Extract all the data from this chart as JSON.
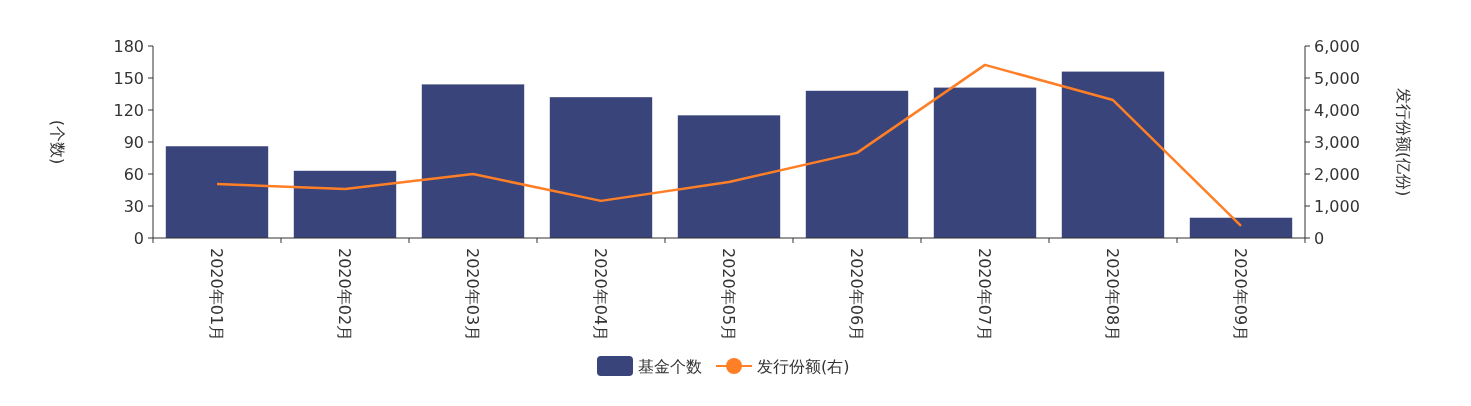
{
  "chart_data": {
    "type": "bar",
    "ylabel": "(个数)",
    "y2label": "发行份额(亿份)",
    "categories": [
      "2020年01月",
      "2020年02月",
      "2020年03月",
      "2020年04月",
      "2020年05月",
      "2020年06月",
      "2020年07月",
      "2020年08月",
      "2020年09月"
    ],
    "series": [
      {
        "name": "基金个数",
        "color": "#38447a",
        "values": [
          86,
          63,
          144,
          132,
          115,
          138,
          141,
          156,
          19
        ]
      },
      {
        "name": "发行份额(右)",
        "type": "line",
        "axis": "y2",
        "color": "#ff7f27",
        "values": [
          1690,
          1530,
          2000,
          1160,
          1750,
          2660,
          5410,
          4310,
          380
        ]
      }
    ],
    "ylim": [
      0,
      180
    ],
    "yticks": [
      0,
      30,
      60,
      90,
      120,
      150,
      180
    ],
    "y2lim": [
      0,
      6000
    ],
    "y2ticks": [
      {
        "value": 0,
        "label": "0"
      },
      {
        "value": 1000,
        "label": "1,000"
      },
      {
        "value": 2000,
        "label": "2,000"
      },
      {
        "value": 3000,
        "label": "3,000"
      },
      {
        "value": 4000,
        "label": "4,000"
      },
      {
        "value": 5000,
        "label": "5,000"
      },
      {
        "value": 6000,
        "label": "6,000"
      }
    ],
    "legend": "bottom",
    "grid": false
  }
}
